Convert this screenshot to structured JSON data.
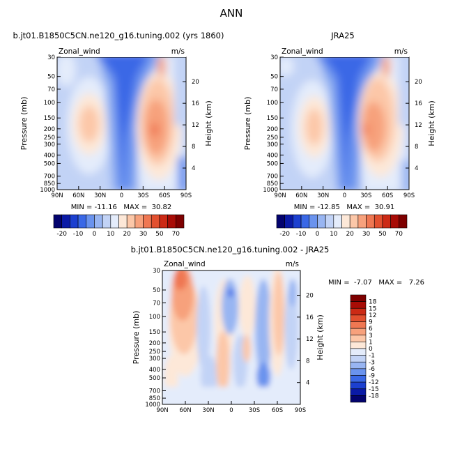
{
  "figure": {
    "title": "ANN",
    "left_title": "b.jt01.B1850C5CN.ne120_g16.tuning.002 (yrs 1860)",
    "right_title": "JRA25",
    "bottom_title": "b.jt01.B1850C5CN.ne120_g16.tuning.002 - JRA25"
  },
  "colors": {
    "full_palette": [
      "#03036e",
      "#0a1aa6",
      "#1c40d0",
      "#3a68e6",
      "#6a93ee",
      "#98b5f2",
      "#c2d3f6",
      "#e4ecfb",
      "#fde8d8",
      "#fcc7a8",
      "#f7a17c",
      "#ef7752",
      "#e2502f",
      "#cc2a15",
      "#a80c06",
      "#7e0000"
    ],
    "diff_palette": [
      "#7e0000",
      "#a80c06",
      "#cc2a15",
      "#e2502f",
      "#ef7752",
      "#f7a17c",
      "#fcc7a8",
      "#fde8d8",
      "#e4ecfb",
      "#c2d3f6",
      "#98b5f2",
      "#6a93ee",
      "#3a68e6",
      "#1c40d0",
      "#0a1aa6",
      "#03036e"
    ]
  },
  "chart_data": [
    {
      "type": "heatmap",
      "name_label": "Zonal_wind",
      "units": "m/s",
      "ylabel": "Pressure (mb)",
      "ylabel_right": "Height (km)",
      "xlabel": "",
      "x_ticks": [
        "90N",
        "60N",
        "30N",
        "0",
        "30S",
        "60S",
        "90S"
      ],
      "y_ticks": [
        "30",
        "50",
        "70",
        "100",
        "150",
        "200",
        "250",
        "300",
        "400",
        "500",
        "700",
        "850",
        "1000"
      ],
      "y_ticks_right": [
        "20",
        "16",
        "12",
        "8",
        "4"
      ],
      "stats": "MIN = -11.16   MAX =  30.82",
      "min": -11.16,
      "max": 30.82,
      "colorbar_labels": [
        "-20",
        "-10",
        "0",
        "10",
        "20",
        "30",
        "50",
        "70"
      ],
      "features": "Westerly jets near 30N and 50-60S (~20-30 m/s), easterlies in tropics and upper levels"
    },
    {
      "type": "heatmap",
      "name_label": "Zonal_wind",
      "units": "m/s",
      "ylabel": "Pressure (mb)",
      "ylabel_right": "Height (km)",
      "x_ticks": [
        "90N",
        "60N",
        "30N",
        "0",
        "30S",
        "60S",
        "90S"
      ],
      "y_ticks": [
        "30",
        "50",
        "70",
        "100",
        "150",
        "200",
        "250",
        "300",
        "400",
        "500",
        "700",
        "850",
        "1000"
      ],
      "y_ticks_right": [
        "20",
        "16",
        "12",
        "8",
        "4"
      ],
      "stats": "MIN = -12.85   MAX =  30.91",
      "min": -12.85,
      "max": 30.91,
      "colorbar_labels": [
        "-20",
        "-10",
        "0",
        "10",
        "20",
        "30",
        "50",
        "70"
      ]
    },
    {
      "type": "heatmap",
      "name_label": "Zonal_wind",
      "units": "m/s",
      "ylabel": "Pressure (mb)",
      "ylabel_right": "Height (km)",
      "x_ticks": [
        "90N",
        "60N",
        "30N",
        "0",
        "30S",
        "60S",
        "90S"
      ],
      "y_ticks": [
        "30",
        "50",
        "70",
        "100",
        "150",
        "200",
        "250",
        "300",
        "400",
        "500",
        "700",
        "850",
        "1000"
      ],
      "y_ticks_right": [
        "20",
        "16",
        "12",
        "8",
        "4"
      ],
      "stats": "MIN =  -7.07   MAX =   7.26",
      "min": -7.07,
      "max": 7.26,
      "colorbar_labels": [
        "18",
        "15",
        "12",
        "9",
        "6",
        "3",
        "1",
        "0",
        "-1",
        "-3",
        "-6",
        "-9",
        "-12",
        "-15",
        "-18"
      ]
    }
  ]
}
